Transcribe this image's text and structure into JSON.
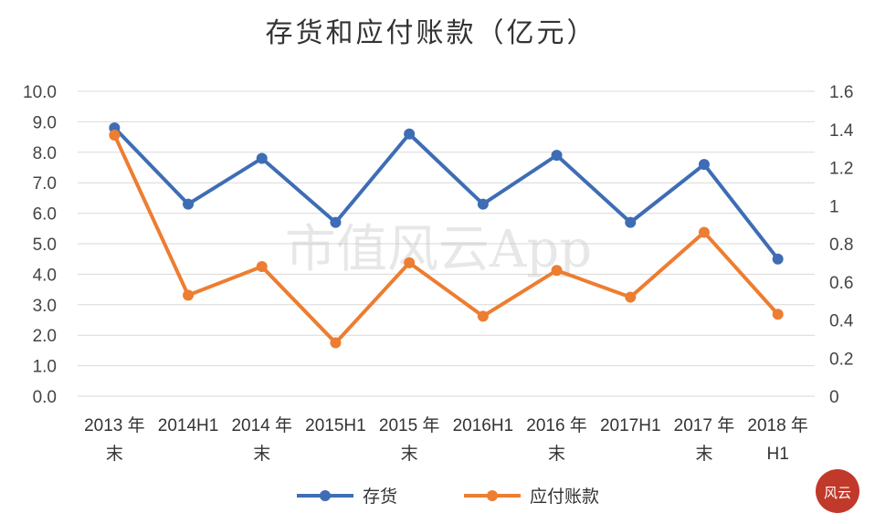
{
  "chart_data": {
    "type": "line",
    "title": "存货和应付账款（亿元）",
    "categories": [
      [
        "2013 年",
        "末"
      ],
      [
        "2014H1",
        ""
      ],
      [
        "2014 年",
        "末"
      ],
      [
        "2015H1",
        ""
      ],
      [
        "2015 年",
        "末"
      ],
      [
        "2016H1",
        ""
      ],
      [
        "2016 年",
        "末"
      ],
      [
        "2017H1",
        ""
      ],
      [
        "2017 年",
        "末"
      ],
      [
        "2018 年",
        "H1"
      ]
    ],
    "series": [
      {
        "name": "存货",
        "axis": "left",
        "color": "#3e6db5",
        "values": [
          8.8,
          6.3,
          7.8,
          5.7,
          8.6,
          6.3,
          7.9,
          5.7,
          7.6,
          4.5
        ]
      },
      {
        "name": "应付账款",
        "axis": "right",
        "color": "#ed7d31",
        "values": [
          1.37,
          0.53,
          0.68,
          0.28,
          0.7,
          0.42,
          0.66,
          0.52,
          0.86,
          0.43
        ]
      }
    ],
    "ylim_left": [
      0,
      10
    ],
    "ylim_right": [
      0,
      1.6
    ],
    "left_ticks": [
      "0.0",
      "1.0",
      "2.0",
      "3.0",
      "4.0",
      "5.0",
      "6.0",
      "7.0",
      "8.0",
      "9.0",
      "10.0"
    ],
    "right_ticks": [
      "0",
      "0.2",
      "0.4",
      "0.6",
      "0.8",
      "1",
      "1.2",
      "1.4",
      "1.6"
    ],
    "grid": true,
    "legend_position": "bottom"
  },
  "watermark": "市值风云App",
  "logo_text": "风云"
}
